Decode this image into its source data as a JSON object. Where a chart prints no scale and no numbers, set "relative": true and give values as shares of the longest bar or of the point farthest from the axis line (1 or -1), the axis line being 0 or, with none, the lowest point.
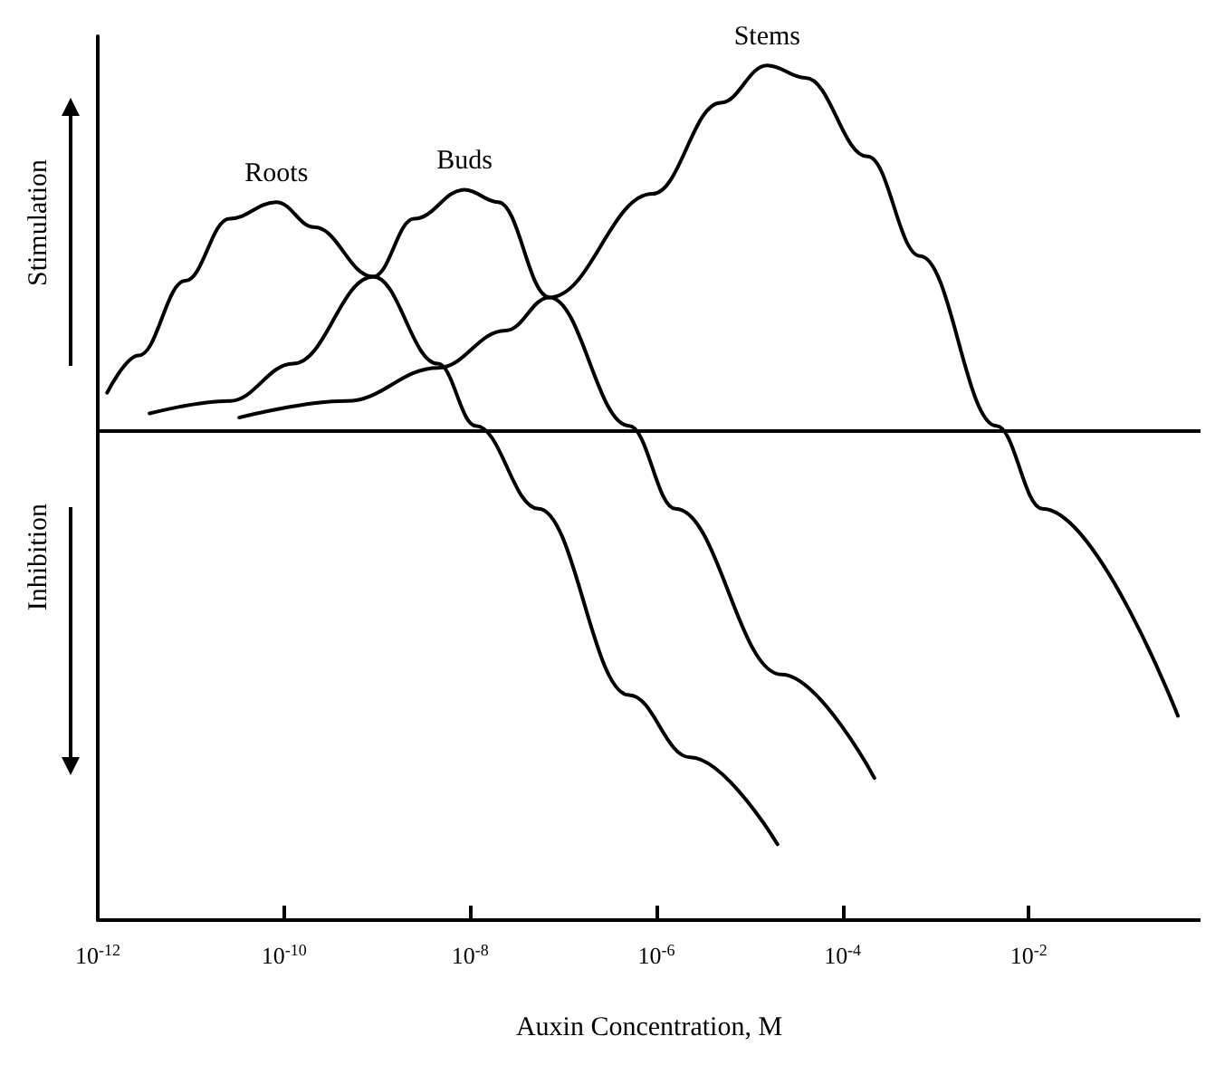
{
  "chart_data": {
    "type": "line",
    "relative": true,
    "xlabel": "Auxin Concentration, M",
    "ylabel": "Stimulation",
    "annotations": [
      "Inhibition"
    ],
    "log": "x",
    "xlim": [
      1e-12,
      0.7
    ],
    "xticks": [
      {
        "value": 1e-12,
        "label": "10$^{-12}$"
      },
      {
        "value": 1e-10,
        "label": "10$^{-10}$"
      },
      {
        "value": 1e-08,
        "label": "10$^{-8}$"
      },
      {
        "value": 1e-06,
        "label": "10$^{-6}$"
      },
      {
        "value": 0.0001,
        "label": "10$^{-4}$"
      },
      {
        "value": 0.01,
        "label": "10$^{-2}$"
      }
    ],
    "grid": false,
    "marker": "none",
    "line_style": "solid",
    "ref_lines": [
      {
        "axis": "y",
        "value": 0,
        "color": "#000000"
      }
    ],
    "series": [
      {
        "name": "Roots",
        "color": "#000000",
        "x": [
          1.26e-12,
          2.75e-12,
          8.7e-12,
          2.6e-11,
          8.3e-11,
          2.1e-10,
          9.1e-10,
          4.5e-09,
          1.15e-08,
          5.4e-08,
          5.1e-07,
          2.3e-06,
          2e-05
        ],
        "values": [
          0.09,
          0.18,
          0.36,
          0.51,
          0.55,
          0.49,
          0.37,
          0.16,
          0.01,
          -0.19,
          -0.64,
          -0.79,
          -1.0
        ]
      },
      {
        "name": "Buds",
        "color": "#000000",
        "x": [
          3.6e-12,
          2.6e-11,
          1.26e-10,
          9.1e-10,
          2.5e-09,
          8.7e-09,
          2e-08,
          7.1e-08,
          5.1e-07,
          1.6e-06,
          2.2e-05,
          0.00022
        ],
        "values": [
          0.04,
          0.07,
          0.16,
          0.37,
          0.51,
          0.58,
          0.55,
          0.32,
          0.01,
          -0.19,
          -0.59,
          -0.84
        ]
      },
      {
        "name": "Stems",
        "color": "#000000",
        "x": [
          3.3e-11,
          4.7e-10,
          4.5e-09,
          2.4e-08,
          7.1e-08,
          9.1e-07,
          4.9e-06,
          1.55e-05,
          4e-05,
          0.000186,
          0.00068,
          0.0045,
          0.014,
          0.4
        ],
        "values": [
          0.03,
          0.07,
          0.15,
          0.24,
          0.32,
          0.57,
          0.79,
          0.88,
          0.85,
          0.66,
          0.42,
          0.01,
          -0.19,
          -0.69
        ]
      }
    ]
  }
}
